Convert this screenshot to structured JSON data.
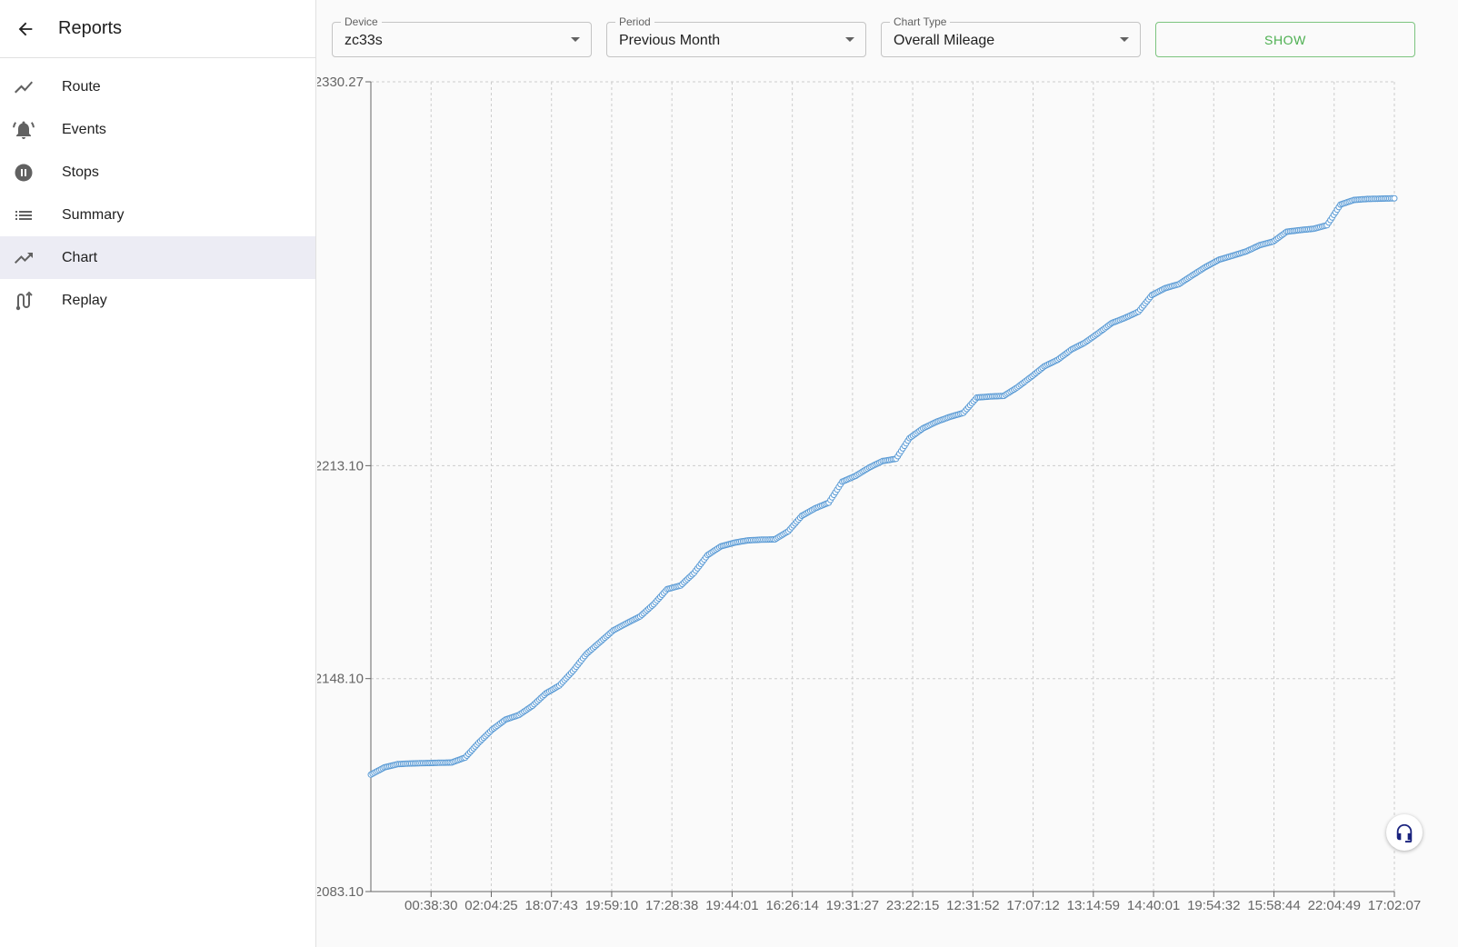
{
  "sidebar": {
    "title": "Reports",
    "items": [
      {
        "label": "Route",
        "icon": "route-icon"
      },
      {
        "label": "Events",
        "icon": "bell-icon"
      },
      {
        "label": "Stops",
        "icon": "pause-circle-icon"
      },
      {
        "label": "Summary",
        "icon": "list-icon"
      },
      {
        "label": "Chart",
        "icon": "trending-up-icon",
        "active": true
      },
      {
        "label": "Replay",
        "icon": "replay-route-icon"
      }
    ]
  },
  "filters": {
    "device": {
      "label": "Device",
      "value": "zc33s"
    },
    "period": {
      "label": "Period",
      "value": "Previous Month"
    },
    "chart_type": {
      "label": "Chart Type",
      "value": "Overall Mileage"
    },
    "show_label": "SHOW"
  },
  "chart_data": {
    "type": "line",
    "title": "",
    "xlabel": "",
    "ylabel": "",
    "ylim": [
      2083.1,
      2330.27
    ],
    "y_ticks": [
      "2330.27",
      "2213.10",
      "2148.10",
      "2083.10"
    ],
    "x_ticks": [
      "00:38:30",
      "02:04:25",
      "18:07:43",
      "19:59:10",
      "17:28:38",
      "19:44:01",
      "16:26:14",
      "19:31:27",
      "23:22:15",
      "12:31:52",
      "17:07:12",
      "13:14:59",
      "14:40:01",
      "19:54:32",
      "15:58:44",
      "22:04:49",
      "17:02:07"
    ],
    "grid": true,
    "color": "#5b9bd5",
    "series": [
      {
        "values": [
          [
            0.0,
            2118.8
          ],
          [
            0.5,
            2121.0
          ],
          [
            1.0,
            2122.0
          ],
          [
            1.5,
            2122.2
          ],
          [
            2.0,
            2122.3
          ],
          [
            2.5,
            2122.4
          ],
          [
            3.0,
            2122.5
          ],
          [
            3.5,
            2124.0
          ],
          [
            4.0,
            2128.5
          ],
          [
            4.5,
            2132.5
          ],
          [
            5.0,
            2135.6
          ],
          [
            5.5,
            2137.0
          ],
          [
            6.0,
            2139.8
          ],
          [
            6.5,
            2143.6
          ],
          [
            7.0,
            2146.0
          ],
          [
            7.5,
            2150.4
          ],
          [
            8.0,
            2155.6
          ],
          [
            8.5,
            2159.2
          ],
          [
            9.0,
            2162.8
          ],
          [
            9.5,
            2165.0
          ],
          [
            10.0,
            2167.1
          ],
          [
            10.5,
            2170.8
          ],
          [
            11.0,
            2175.4
          ],
          [
            11.5,
            2176.5
          ],
          [
            12.0,
            2180.4
          ],
          [
            12.5,
            2185.8
          ],
          [
            13.0,
            2188.5
          ],
          [
            13.5,
            2189.6
          ],
          [
            14.0,
            2190.3
          ],
          [
            14.5,
            2190.5
          ],
          [
            15.0,
            2190.6
          ],
          [
            15.5,
            2193.1
          ],
          [
            16.0,
            2197.8
          ],
          [
            16.5,
            2200.1
          ],
          [
            17.0,
            2201.8
          ],
          [
            17.5,
            2208.2
          ],
          [
            18.0,
            2210.0
          ],
          [
            18.5,
            2212.5
          ],
          [
            19.0,
            2214.5
          ],
          [
            19.5,
            2215.2
          ],
          [
            20.0,
            2221.5
          ],
          [
            20.5,
            2224.5
          ],
          [
            21.0,
            2226.5
          ],
          [
            21.5,
            2228.0
          ],
          [
            22.0,
            2229.2
          ],
          [
            22.5,
            2233.9
          ],
          [
            23.0,
            2234.2
          ],
          [
            23.5,
            2234.4
          ],
          [
            24.0,
            2237.0
          ],
          [
            24.5,
            2240.1
          ],
          [
            25.0,
            2243.4
          ],
          [
            25.5,
            2245.4
          ],
          [
            26.0,
            2248.5
          ],
          [
            26.5,
            2250.6
          ],
          [
            27.0,
            2253.5
          ],
          [
            27.5,
            2256.6
          ],
          [
            28.0,
            2258.2
          ],
          [
            28.5,
            2260.1
          ],
          [
            29.0,
            2265.2
          ],
          [
            29.5,
            2267.3
          ],
          [
            30.0,
            2268.5
          ],
          [
            30.5,
            2271.2
          ],
          [
            31.0,
            2273.8
          ],
          [
            31.5,
            2276.0
          ],
          [
            32.0,
            2277.2
          ],
          [
            32.5,
            2278.5
          ],
          [
            33.0,
            2280.4
          ],
          [
            33.5,
            2281.5
          ],
          [
            34.0,
            2284.5
          ],
          [
            34.5,
            2285.0
          ],
          [
            35.0,
            2285.4
          ],
          [
            35.5,
            2286.5
          ],
          [
            36.0,
            2292.8
          ],
          [
            36.5,
            2294.2
          ],
          [
            37.0,
            2294.5
          ],
          [
            37.5,
            2294.6
          ],
          [
            38.0,
            2294.7
          ]
        ]
      }
    ]
  },
  "support": {
    "icon": "headset-icon"
  }
}
